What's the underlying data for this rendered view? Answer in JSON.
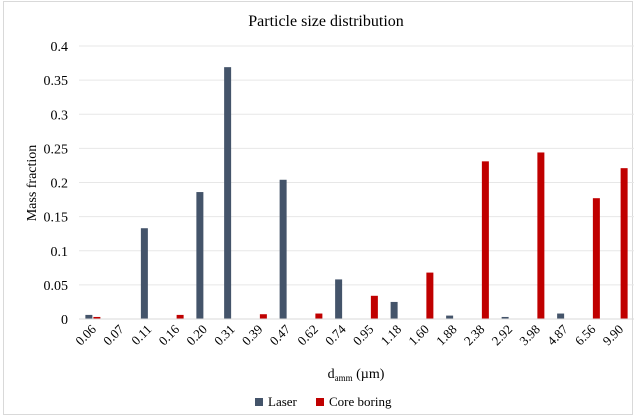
{
  "chart_data": {
    "type": "bar",
    "title": "Particle size distribution",
    "xlabel_main": "d",
    "xlabel_sub": "amm",
    "xlabel_unit": " (µm)",
    "ylabel": "Mass fraction",
    "ylim": [
      0,
      0.4
    ],
    "yticks": [
      "0",
      "0.05",
      "0.1",
      "0.15",
      "0.2",
      "0.25",
      "0.3",
      "0.35",
      "0.4"
    ],
    "grid": true,
    "legend_position": "bottom",
    "categories": [
      "0.06",
      "0.07",
      "0.11",
      "0.16",
      "0.20",
      "0.31",
      "0.39",
      "0.47",
      "0.62",
      "0.74",
      "0.95",
      "1.18",
      "1.60",
      "1.88",
      "2.38",
      "2.92",
      "3.98",
      "4.87",
      "6.56",
      "9.90"
    ],
    "series": [
      {
        "name": "Laser",
        "color": "#44546a",
        "values": [
          0.006,
          0,
          0.133,
          0,
          0.186,
          0.369,
          0,
          0.204,
          0,
          0.058,
          0,
          0.025,
          0,
          0.005,
          0,
          0.003,
          0,
          0.008,
          0,
          0
        ]
      },
      {
        "name": "Core boring",
        "color": "#c00000",
        "values": [
          0.003,
          0,
          0,
          0.006,
          0,
          0,
          0.007,
          0,
          0.008,
          0,
          0.034,
          0,
          0.068,
          0,
          0.231,
          0,
          0.244,
          0,
          0.177,
          0.221
        ]
      }
    ]
  }
}
